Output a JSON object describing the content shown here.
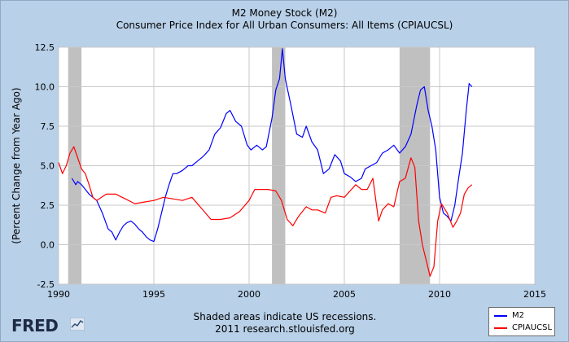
{
  "chart_data": {
    "type": "line",
    "title": "M2 Money Stock (M2)",
    "subtitle": "Consumer Price Index for All Urban Consumers: All Items (CPIAUCSL)",
    "ylabel": "(Percent Change from Year Ago)",
    "xlabel": "",
    "xlim": [
      1990,
      2015
    ],
    "ylim": [
      -2.5,
      12.5
    ],
    "x_ticks": [
      "1990",
      "1995",
      "2000",
      "2005",
      "2010",
      "2015"
    ],
    "y_ticks": [
      "12.5",
      "10.0",
      "7.5",
      "5.0",
      "2.5",
      "0.0",
      "-2.5"
    ],
    "grid": true,
    "recessions": [
      [
        1990.5,
        1991.2
      ],
      [
        2001.2,
        2001.9
      ],
      [
        2007.9,
        2009.5
      ]
    ],
    "series": [
      {
        "name": "M2",
        "color": "#0000ff",
        "points": [
          [
            1990.7,
            4.2
          ],
          [
            1990.9,
            3.8
          ],
          [
            1991.0,
            4.0
          ],
          [
            1991.2,
            3.8
          ],
          [
            1991.4,
            3.5
          ],
          [
            1991.6,
            3.2
          ],
          [
            1991.8,
            3.0
          ],
          [
            1992.0,
            2.8
          ],
          [
            1992.3,
            2.0
          ],
          [
            1992.6,
            1.0
          ],
          [
            1992.8,
            0.8
          ],
          [
            1993.0,
            0.3
          ],
          [
            1993.2,
            0.8
          ],
          [
            1993.4,
            1.2
          ],
          [
            1993.6,
            1.4
          ],
          [
            1993.8,
            1.5
          ],
          [
            1994.0,
            1.3
          ],
          [
            1994.2,
            1.0
          ],
          [
            1994.4,
            0.8
          ],
          [
            1994.6,
            0.5
          ],
          [
            1994.8,
            0.3
          ],
          [
            1995.0,
            0.2
          ],
          [
            1995.2,
            1.0
          ],
          [
            1995.4,
            2.0
          ],
          [
            1995.6,
            3.0
          ],
          [
            1995.8,
            3.8
          ],
          [
            1996.0,
            4.5
          ],
          [
            1996.2,
            4.5
          ],
          [
            1996.5,
            4.7
          ],
          [
            1996.8,
            5.0
          ],
          [
            1997.0,
            5.0
          ],
          [
            1997.3,
            5.3
          ],
          [
            1997.6,
            5.6
          ],
          [
            1997.9,
            6.0
          ],
          [
            1998.2,
            7.0
          ],
          [
            1998.5,
            7.4
          ],
          [
            1998.8,
            8.3
          ],
          [
            1999.0,
            8.5
          ],
          [
            1999.3,
            7.8
          ],
          [
            1999.6,
            7.5
          ],
          [
            1999.9,
            6.3
          ],
          [
            2000.1,
            6.0
          ],
          [
            2000.4,
            6.3
          ],
          [
            2000.7,
            6.0
          ],
          [
            2000.9,
            6.2
          ],
          [
            2001.2,
            8.0
          ],
          [
            2001.4,
            9.8
          ],
          [
            2001.6,
            10.5
          ],
          [
            2001.75,
            12.4
          ],
          [
            2001.9,
            10.5
          ],
          [
            2002.2,
            8.8
          ],
          [
            2002.5,
            7.0
          ],
          [
            2002.8,
            6.8
          ],
          [
            2003.0,
            7.5
          ],
          [
            2003.3,
            6.5
          ],
          [
            2003.6,
            6.0
          ],
          [
            2003.9,
            4.5
          ],
          [
            2004.2,
            4.8
          ],
          [
            2004.5,
            5.7
          ],
          [
            2004.8,
            5.3
          ],
          [
            2005.0,
            4.5
          ],
          [
            2005.3,
            4.3
          ],
          [
            2005.6,
            4.0
          ],
          [
            2005.9,
            4.2
          ],
          [
            2006.1,
            4.8
          ],
          [
            2006.4,
            5.0
          ],
          [
            2006.7,
            5.2
          ],
          [
            2007.0,
            5.8
          ],
          [
            2007.3,
            6.0
          ],
          [
            2007.6,
            6.3
          ],
          [
            2007.9,
            5.8
          ],
          [
            2008.2,
            6.2
          ],
          [
            2008.5,
            7.0
          ],
          [
            2008.8,
            8.8
          ],
          [
            2009.0,
            9.8
          ],
          [
            2009.2,
            10.0
          ],
          [
            2009.4,
            8.5
          ],
          [
            2009.6,
            7.5
          ],
          [
            2009.8,
            6.0
          ],
          [
            2010.0,
            3.0
          ],
          [
            2010.2,
            2.0
          ],
          [
            2010.4,
            1.8
          ],
          [
            2010.6,
            1.5
          ],
          [
            2010.8,
            2.5
          ],
          [
            2011.0,
            4.2
          ],
          [
            2011.2,
            5.8
          ],
          [
            2011.4,
            8.5
          ],
          [
            2011.55,
            10.2
          ],
          [
            2011.7,
            10.0
          ]
        ]
      },
      {
        "name": "CPIAUCSL",
        "color": "#ff0000",
        "points": [
          [
            1990.0,
            5.2
          ],
          [
            1990.2,
            4.5
          ],
          [
            1990.4,
            5.0
          ],
          [
            1990.6,
            5.8
          ],
          [
            1990.8,
            6.2
          ],
          [
            1991.0,
            5.5
          ],
          [
            1991.2,
            4.8
          ],
          [
            1991.4,
            4.5
          ],
          [
            1991.6,
            3.8
          ],
          [
            1991.8,
            3.0
          ],
          [
            1992.0,
            2.8
          ],
          [
            1992.5,
            3.2
          ],
          [
            1993.0,
            3.2
          ],
          [
            1993.5,
            2.9
          ],
          [
            1994.0,
            2.6
          ],
          [
            1994.5,
            2.7
          ],
          [
            1995.0,
            2.8
          ],
          [
            1995.5,
            3.0
          ],
          [
            1996.0,
            2.9
          ],
          [
            1996.5,
            2.8
          ],
          [
            1997.0,
            3.0
          ],
          [
            1997.5,
            2.3
          ],
          [
            1998.0,
            1.6
          ],
          [
            1998.5,
            1.6
          ],
          [
            1999.0,
            1.7
          ],
          [
            1999.5,
            2.1
          ],
          [
            2000.0,
            2.8
          ],
          [
            2000.3,
            3.5
          ],
          [
            2000.6,
            3.5
          ],
          [
            2001.0,
            3.5
          ],
          [
            2001.4,
            3.4
          ],
          [
            2001.7,
            2.8
          ],
          [
            2002.0,
            1.6
          ],
          [
            2002.3,
            1.2
          ],
          [
            2002.6,
            1.8
          ],
          [
            2003.0,
            2.4
          ],
          [
            2003.3,
            2.2
          ],
          [
            2003.6,
            2.2
          ],
          [
            2004.0,
            2.0
          ],
          [
            2004.3,
            3.0
          ],
          [
            2004.6,
            3.1
          ],
          [
            2005.0,
            3.0
          ],
          [
            2005.3,
            3.4
          ],
          [
            2005.6,
            3.8
          ],
          [
            2005.9,
            3.5
          ],
          [
            2006.2,
            3.5
          ],
          [
            2006.5,
            4.2
          ],
          [
            2006.8,
            1.5
          ],
          [
            2007.0,
            2.2
          ],
          [
            2007.3,
            2.6
          ],
          [
            2007.6,
            2.4
          ],
          [
            2007.9,
            4.0
          ],
          [
            2008.2,
            4.2
          ],
          [
            2008.5,
            5.5
          ],
          [
            2008.7,
            4.9
          ],
          [
            2008.9,
            1.5
          ],
          [
            2009.1,
            0.0
          ],
          [
            2009.3,
            -1.0
          ],
          [
            2009.5,
            -2.0
          ],
          [
            2009.7,
            -1.4
          ],
          [
            2009.9,
            1.5
          ],
          [
            2010.1,
            2.6
          ],
          [
            2010.4,
            2.0
          ],
          [
            2010.7,
            1.1
          ],
          [
            2010.9,
            1.5
          ],
          [
            2011.1,
            2.0
          ],
          [
            2011.3,
            3.2
          ],
          [
            2011.5,
            3.6
          ],
          [
            2011.7,
            3.8
          ]
        ]
      }
    ]
  },
  "footer": {
    "logo": "FRED",
    "note": "Shaded areas indicate US recessions.",
    "credit": "2011 research.stlouisfed.org"
  },
  "legend": {
    "placement": "bottom-right",
    "items": [
      "M2",
      "CPIAUCSL"
    ]
  }
}
